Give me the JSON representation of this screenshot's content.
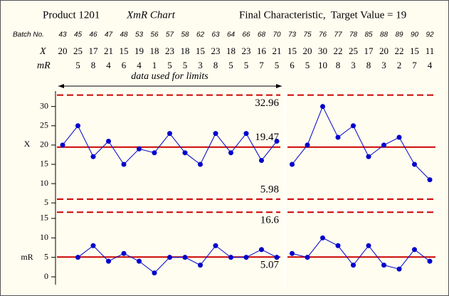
{
  "chart_data": {
    "type": "xmr",
    "title": "Product 1201",
    "chart_name": "XmR Chart",
    "subtitle": "Final Characteristic,  Target Value = 19",
    "row_labels": {
      "batch": "Batch No.",
      "x": "X",
      "mr": "mR"
    },
    "phases": [
      {
        "annotation": "data used for limits",
        "categories": [
          "43",
          "45",
          "46",
          "47",
          "48",
          "53",
          "56",
          "57",
          "58",
          "62",
          "63",
          "64",
          "66",
          "68",
          "70"
        ],
        "x": [
          20,
          25,
          17,
          21,
          15,
          19,
          18,
          23,
          18,
          15,
          23,
          18,
          23,
          16,
          21
        ],
        "mr": [
          null,
          5,
          8,
          4,
          6,
          4,
          1,
          5,
          5,
          3,
          8,
          5,
          5,
          7,
          5
        ]
      },
      {
        "categories": [
          "73",
          "75",
          "76",
          "77",
          "78",
          "85",
          "88",
          "89",
          "90",
          "92"
        ],
        "x": [
          15,
          20,
          30,
          22,
          25,
          17,
          20,
          22,
          15,
          11
        ],
        "mr": [
          6,
          5,
          10,
          8,
          3,
          8,
          3,
          2,
          7,
          4
        ]
      }
    ],
    "x_chart": {
      "ylabel": "X",
      "ylim": [
        3,
        34
      ],
      "yticks": [
        5,
        10,
        15,
        20,
        25,
        30
      ],
      "limits": {
        "upper": 32.96,
        "center": 19.47,
        "lower": 5.98
      },
      "color": "#0000cc",
      "limit_color": "#cc0000"
    },
    "mr_chart": {
      "ylabel": "mR",
      "ylim": [
        -2,
        17
      ],
      "yticks": [
        0,
        5,
        10,
        15
      ],
      "limits": {
        "upper": 16.6,
        "center": 5.07
      },
      "color": "#0000cc",
      "limit_color": "#cc0000"
    }
  }
}
